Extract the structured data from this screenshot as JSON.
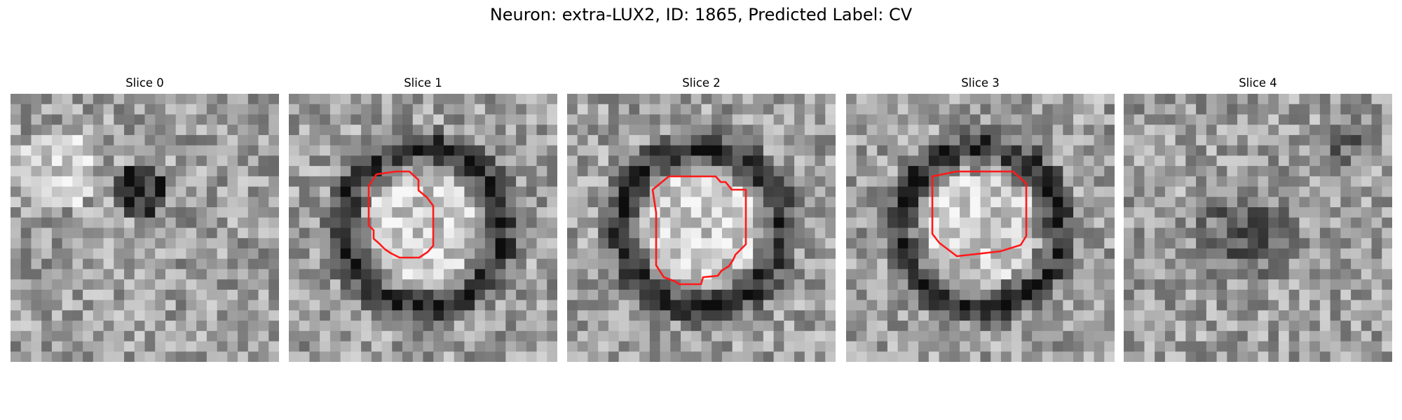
{
  "figure": {
    "title": "Neuron: extra-LUX2, ID: 1865, Predicted Label: CV"
  },
  "panels": [
    {
      "title": "Slice 0",
      "has_contour": false,
      "seed": 11,
      "kind": "blob"
    },
    {
      "title": "Slice 1",
      "has_contour": true,
      "seed": 23,
      "kind": "ring"
    },
    {
      "title": "Slice 2",
      "has_contour": true,
      "seed": 37,
      "kind": "ring"
    },
    {
      "title": "Slice 3",
      "has_contour": true,
      "seed": 51,
      "kind": "ring"
    },
    {
      "title": "Slice 4",
      "has_contour": false,
      "seed": 67,
      "kind": "dark"
    }
  ],
  "colors": {
    "contour": "#ff1a1a",
    "background": "#ffffff"
  },
  "colormap": "grayscale",
  "grid": {
    "pixels_per_side": 26
  }
}
